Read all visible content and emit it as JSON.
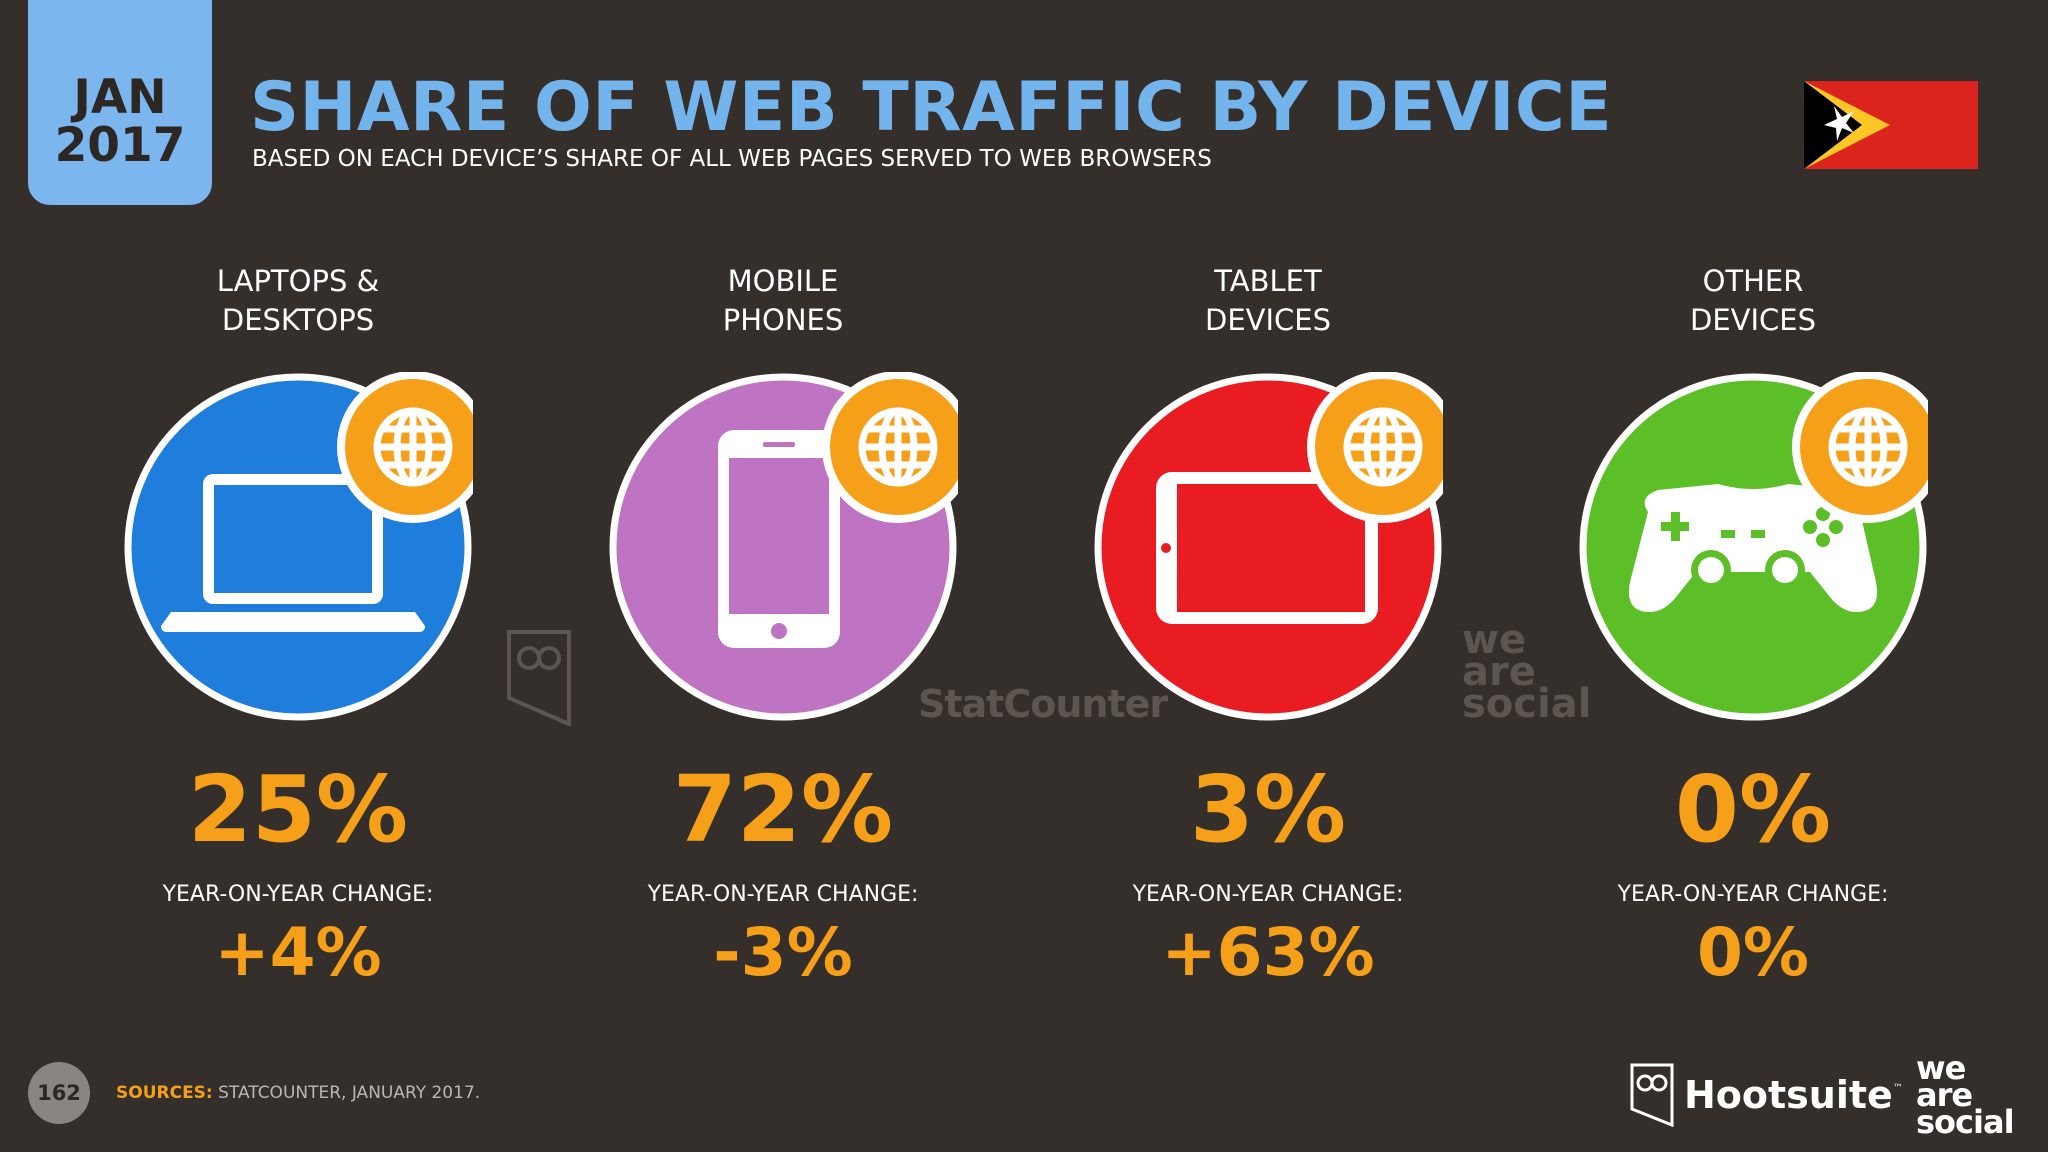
{
  "header": {
    "month": "JAN",
    "year": "2017",
    "title": "SHARE OF WEB TRAFFIC BY DEVICE",
    "subtitle": "BASED ON EACH DEVICE’S SHARE OF ALL WEB PAGES SERVED TO WEB BROWSERS"
  },
  "colors": {
    "background": "#352f2c",
    "accent_orange": "#f6a01a",
    "title_blue": "#74b4ec",
    "laptop_blue": "#1f7ddb",
    "mobile_purple": "#bf73c3",
    "tablet_red": "#e91c22",
    "other_green": "#5cbf28"
  },
  "devices": [
    {
      "label_line1": "LAPTOPS &",
      "label_line2": "DESKTOPS",
      "share": "25%",
      "yoy_label": "YEAR-ON-YEAR CHANGE:",
      "yoy": "+4%",
      "icon": "laptop-icon"
    },
    {
      "label_line1": "MOBILE",
      "label_line2": "PHONES",
      "share": "72%",
      "yoy_label": "YEAR-ON-YEAR CHANGE:",
      "yoy": "-3%",
      "icon": "mobile-phone-icon"
    },
    {
      "label_line1": "TABLET",
      "label_line2": "DEVICES",
      "share": "3%",
      "yoy_label": "YEAR-ON-YEAR CHANGE:",
      "yoy": "+63%",
      "icon": "tablet-icon"
    },
    {
      "label_line1": "OTHER",
      "label_line2": "DEVICES",
      "share": "0%",
      "yoy_label": "YEAR-ON-YEAR CHANGE:",
      "yoy": "0%",
      "icon": "game-controller-icon"
    }
  ],
  "watermarks": {
    "statcounter": "StatCounter",
    "wearesocial_1": "we",
    "wearesocial_2": "are",
    "wearesocial_3": "social"
  },
  "footer": {
    "page_number": "162",
    "sources_label": "SOURCES:",
    "sources_text": " STATCOUNTER, JANUARY 2017.",
    "hootsuite": "Hootsuite",
    "hootsuite_tm": "™",
    "was_1": "we",
    "was_2": "are",
    "was_3": "social"
  }
}
